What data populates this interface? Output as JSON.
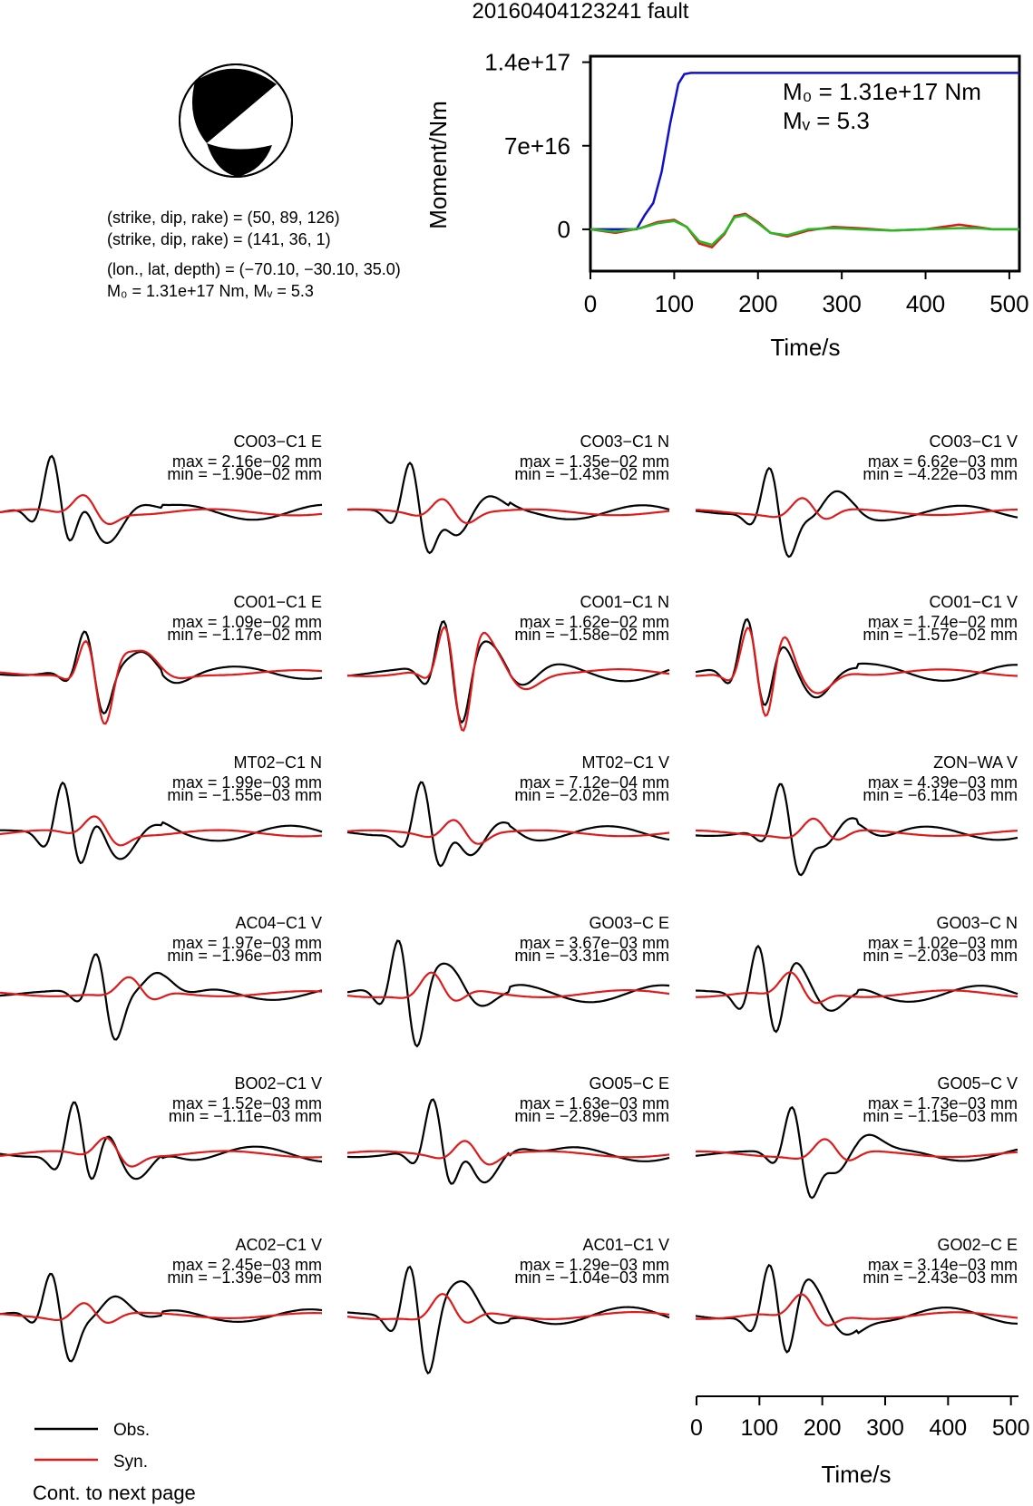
{
  "title": "20160404123241 fault",
  "solution": {
    "line1": "(strike, dip, rake) = (50, 89, 126)",
    "line2": "(strike, dip, rake) = (141, 36, 1)",
    "line3": "(lon., lat, depth) = (−70.10, −30.10, 35.0)",
    "line4": "M₀ = 1.31e+17 Nm, Mᵥ = 5.3"
  },
  "legend": {
    "obs": "Obs.",
    "syn": "Syn.",
    "cont": "Cont. to next page"
  },
  "colors": {
    "obs": "#000000",
    "syn": "#e0191a",
    "moment": "#1010cc",
    "green": "#22bb22"
  },
  "chart_data": [
    {
      "type": "line",
      "ylabel": "Moment/Nm",
      "xlabel": "Time/s",
      "xlim": [
        0,
        512
      ],
      "ylim": [
        -3.5e+16,
        1.45e+17
      ],
      "xticks": [
        "0",
        "100",
        "200",
        "300",
        "400",
        "500"
      ],
      "yticks": [
        "0",
        "7e+16",
        "1.4e+17"
      ],
      "annotation1": "M₀ = 1.31e+17 Nm",
      "annotation2": "Mᵥ = 5.3",
      "series": [
        {
          "color": "#1010cc",
          "x": [
            0,
            55,
            65,
            75,
            85,
            95,
            105,
            112,
            120,
            512
          ],
          "y": [
            0,
            0,
            1.2e+16,
            2.2e+16,
            4.8e+16,
            8.8e+16,
            1.22e+17,
            1.3e+17,
            1.31e+17,
            1.31e+17
          ]
        },
        {
          "color": "#e0191a",
          "x": [
            0,
            30,
            60,
            80,
            100,
            115,
            130,
            145,
            160,
            172,
            185,
            200,
            215,
            235,
            260,
            290,
            320,
            360,
            400,
            440,
            460,
            480,
            512
          ],
          "y": [
            0,
            -3000000000000000.0,
            1000000000000000.0,
            6000000000000000.0,
            8000000000000000.0,
            2000000000000000.0,
            -1.2e+16,
            -1.5e+16,
            -4000000000000000.0,
            1.1e+16,
            1.3e+16,
            6000000000000000.0,
            -3000000000000000.0,
            -6000000000000000.0,
            -1000000000000000.0,
            2000000000000000.0,
            1000000000000000.0,
            -1000000000000000.0,
            0,
            4000000000000000.0,
            2000000000000000.0,
            0,
            0
          ]
        },
        {
          "color": "#22bb22",
          "x": [
            0,
            30,
            60,
            80,
            100,
            115,
            130,
            145,
            160,
            172,
            185,
            200,
            215,
            235,
            260,
            290,
            320,
            360,
            400,
            440,
            460,
            480,
            512
          ],
          "y": [
            0,
            -2000000000000000.0,
            1000000000000000.0,
            5000000000000000.0,
            7000000000000000.0,
            2000000000000000.0,
            -1e+16,
            -1.3e+16,
            -3000000000000000.0,
            1e+16,
            1.2e+16,
            5000000000000000.0,
            -3000000000000000.0,
            -5000000000000000.0,
            0,
            1000000000000000.0,
            0,
            -1000000000000000.0,
            0,
            1000000000000000.0,
            1000000000000000.0,
            0,
            0
          ]
        }
      ]
    },
    {
      "type": "line",
      "xlabel": "Time/s",
      "xlim": [
        0,
        512
      ],
      "xticks": [
        "0",
        "100",
        "200",
        "300",
        "400",
        "500"
      ],
      "panels": [
        {
          "station": "CO03−C1 E",
          "max": "max = 2.16e−02 mm",
          "min": "min = −1.90e−02 mm"
        },
        {
          "station": "CO03−C1 N",
          "max": "max = 1.35e−02 mm",
          "min": "min = −1.43e−02 mm"
        },
        {
          "station": "CO03−C1 V",
          "max": "max = 6.62e−03 mm",
          "min": "min = −4.22e−03 mm"
        },
        {
          "station": "CO01−C1 E",
          "max": "max = 1.09e−02 mm",
          "min": "min = −1.17e−02 mm"
        },
        {
          "station": "CO01−C1 N",
          "max": "max = 1.62e−02 mm",
          "min": "min = −1.58e−02 mm"
        },
        {
          "station": "CO01−C1 V",
          "max": "max = 1.74e−02 mm",
          "min": "min = −1.57e−02 mm"
        },
        {
          "station": "MT02−C1 N",
          "max": "max = 1.99e−03 mm",
          "min": "min = −1.55e−03 mm"
        },
        {
          "station": "MT02−C1 V",
          "max": "max = 7.12e−04 mm",
          "min": "min = −2.02e−03 mm"
        },
        {
          "station": "ZON−WA V",
          "max": "max = 4.39e−03 mm",
          "min": "min = −6.14e−03 mm"
        },
        {
          "station": "AC04−C1 V",
          "max": "max = 1.97e−03 mm",
          "min": "min = −1.96e−03 mm"
        },
        {
          "station": "GO03−C E",
          "max": "max = 3.67e−03 mm",
          "min": "min = −3.31e−03 mm"
        },
        {
          "station": "GO03−C N",
          "max": "max = 1.02e−03 mm",
          "min": "min = −2.03e−03 mm"
        },
        {
          "station": "BO02−C1 V",
          "max": "max = 1.52e−03 mm",
          "min": "min = −1.11e−03 mm"
        },
        {
          "station": "GO05−C E",
          "max": "max = 1.63e−03 mm",
          "min": "min = −2.89e−03 mm"
        },
        {
          "station": "GO05−C V",
          "max": "max = 1.73e−03 mm",
          "min": "min = −1.15e−03 mm"
        },
        {
          "station": "AC02−C1 V",
          "max": "max = 2.45e−03 mm",
          "min": "min = −1.39e−03 mm"
        },
        {
          "station": "AC01−C1 V",
          "max": "max = 1.29e−03 mm",
          "min": "min = −1.04e−03 mm"
        },
        {
          "station": "GO02−C E",
          "max": "max = 3.14e−03 mm",
          "min": "min = −2.43e−03 mm"
        }
      ]
    }
  ]
}
